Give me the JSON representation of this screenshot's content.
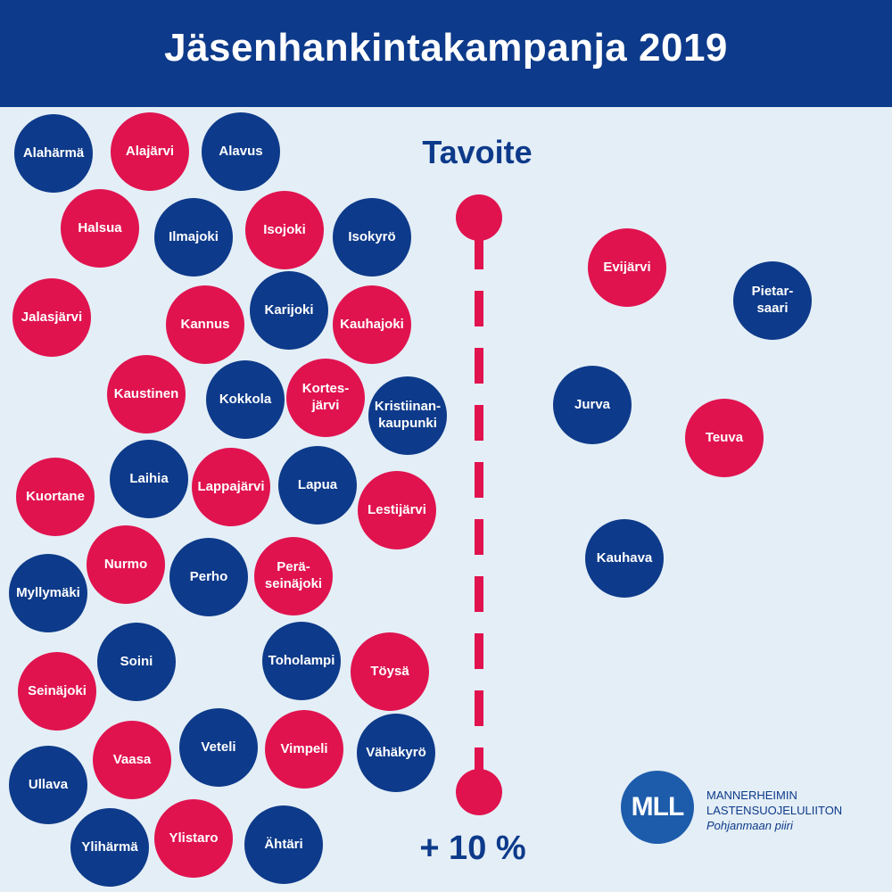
{
  "title": "Jäsenhankintakampanja 2019",
  "colors": {
    "header": "#0d3a8a",
    "navy": "#0d3a8a",
    "pink": "#e0134f",
    "background": "#e4eef6",
    "logo": "#1d5cab"
  },
  "target": {
    "label": "Tavoite",
    "value": "+ 10 %"
  },
  "logo": {
    "mark": "MLL",
    "line1": "MANNERHEIMIN",
    "line2": "LASTENSUOJELULIITON",
    "line3": "Pohjanmaan piiri"
  },
  "bubbles": [
    {
      "name": "Alahärmä",
      "color": "navy"
    },
    {
      "name": "Alajärvi",
      "color": "pink"
    },
    {
      "name": "Alavus",
      "color": "navy"
    },
    {
      "name": "Halsua",
      "color": "pink"
    },
    {
      "name": "Ilmajoki",
      "color": "navy"
    },
    {
      "name": "Isojoki",
      "color": "pink"
    },
    {
      "name": "Isokyrö",
      "color": "navy"
    },
    {
      "name": "Jalasjärvi",
      "color": "pink"
    },
    {
      "name": "Kannus",
      "color": "pink"
    },
    {
      "name": "Karijoki",
      "color": "navy"
    },
    {
      "name": "Kauhajoki",
      "color": "pink"
    },
    {
      "name": "Kaustinen",
      "color": "pink"
    },
    {
      "name": "Kokkola",
      "color": "navy"
    },
    {
      "name": "Kortes-\njärvi",
      "color": "pink"
    },
    {
      "name": "Kristiinan-\nkaupunki",
      "color": "navy"
    },
    {
      "name": "Kuortane",
      "color": "pink"
    },
    {
      "name": "Laihia",
      "color": "navy"
    },
    {
      "name": "Lappajärvi",
      "color": "pink"
    },
    {
      "name": "Lapua",
      "color": "navy"
    },
    {
      "name": "Lestijärvi",
      "color": "pink"
    },
    {
      "name": "Myllymäki",
      "color": "navy"
    },
    {
      "name": "Nurmo",
      "color": "pink"
    },
    {
      "name": "Perho",
      "color": "navy"
    },
    {
      "name": "Perä-\nseinäjoki",
      "color": "pink"
    },
    {
      "name": "Seinäjoki",
      "color": "pink"
    },
    {
      "name": "Soini",
      "color": "navy"
    },
    {
      "name": "Toholampi",
      "color": "navy"
    },
    {
      "name": "Töysä",
      "color": "pink"
    },
    {
      "name": "Ullava",
      "color": "navy"
    },
    {
      "name": "Vaasa",
      "color": "pink"
    },
    {
      "name": "Veteli",
      "color": "navy"
    },
    {
      "name": "Vimpeli",
      "color": "pink"
    },
    {
      "name": "Vähäkyrö",
      "color": "navy"
    },
    {
      "name": "Ylihärmä",
      "color": "navy"
    },
    {
      "name": "Ylistaro",
      "color": "pink"
    },
    {
      "name": "Ähtäri",
      "color": "navy"
    },
    {
      "name": "Evijärvi",
      "color": "pink"
    },
    {
      "name": "Pietar-\nsaari",
      "color": "navy"
    },
    {
      "name": "Jurva",
      "color": "navy"
    },
    {
      "name": "Teuva",
      "color": "pink"
    },
    {
      "name": "Kauhava",
      "color": "navy"
    }
  ]
}
